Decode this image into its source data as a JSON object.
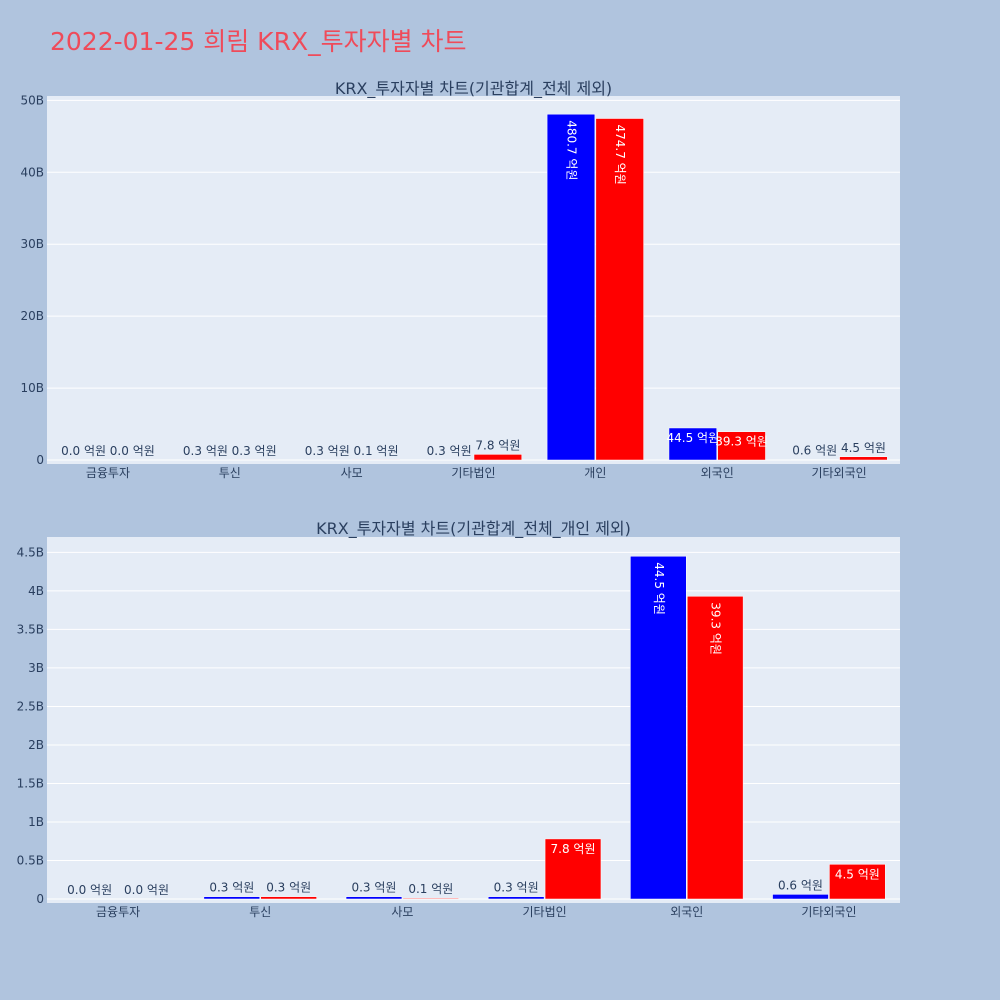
{
  "page": {
    "title": "2022-01-25 희림 KRX_투자자별 차트"
  },
  "colors": {
    "background": "#b0c4de",
    "plot_background": "#e5ecf6",
    "buy": "#0000ff",
    "sell": "#ff0000",
    "title": "#ef4b5a",
    "text": "#2a3f5f"
  },
  "chart_data": [
    {
      "type": "bar",
      "title": "KRX_투자자별 차트(기관합계_전체 제외)",
      "categories": [
        "금융투자",
        "투신",
        "사모",
        "기타법인",
        "개인",
        "외국인",
        "기타외국인"
      ],
      "series": [
        {
          "color": "#0000ff",
          "values": [
            0.0,
            30000000,
            30000000,
            30000000,
            48070000000,
            4450000000,
            60000000
          ],
          "labels": [
            "0.0 억원",
            "0.3 억원",
            "0.3 억원",
            "0.3 억원",
            "480.7 억원",
            "44.5 억원",
            "0.6 억원"
          ]
        },
        {
          "color": "#ff0000",
          "values": [
            0.0,
            30000000,
            10000000,
            780000000,
            47470000000,
            3930000000,
            450000000
          ],
          "labels": [
            "0.0 억원",
            "0.3 억원",
            "0.1 억원",
            "7.8 억원",
            "474.7 억원",
            "39.3 억원",
            "4.5 억원"
          ]
        }
      ],
      "yticks": [
        0,
        10000000000,
        20000000000,
        30000000000,
        40000000000,
        50000000000
      ],
      "ytick_labels": [
        "0",
        "10B",
        "20B",
        "30B",
        "40B",
        "50B"
      ],
      "ylim": [
        0,
        50600000000
      ],
      "grid": true,
      "barmode": "group"
    },
    {
      "type": "bar",
      "title": "KRX_투자자별 차트(기관합계_전체_개인 제외)",
      "categories": [
        "금융투자",
        "투신",
        "사모",
        "기타법인",
        "외국인",
        "기타외국인"
      ],
      "series": [
        {
          "color": "#0000ff",
          "values": [
            0.0,
            30000000,
            30000000,
            30000000,
            4450000000,
            60000000
          ],
          "labels": [
            "0.0 억원",
            "0.3 억원",
            "0.3 억원",
            "0.3 억원",
            "44.5 억원",
            "0.6 억원"
          ]
        },
        {
          "color": "#ff0000",
          "values": [
            0.0,
            30000000,
            10000000,
            780000000,
            3930000000,
            450000000
          ],
          "labels": [
            "0.0 억원",
            "0.3 억원",
            "0.1 억원",
            "7.8 억원",
            "39.3 억원",
            "4.5 억원"
          ]
        }
      ],
      "yticks": [
        0,
        500000000,
        1000000000,
        1500000000,
        2000000000,
        2500000000,
        3000000000,
        3500000000,
        4000000000,
        4500000000
      ],
      "ytick_labels": [
        "0",
        "0.5B",
        "1B",
        "1.5B",
        "2B",
        "2.5B",
        "3B",
        "3.5B",
        "4B",
        "4.5B"
      ],
      "ylim": [
        0,
        4700000000
      ],
      "grid": true,
      "barmode": "group"
    }
  ]
}
